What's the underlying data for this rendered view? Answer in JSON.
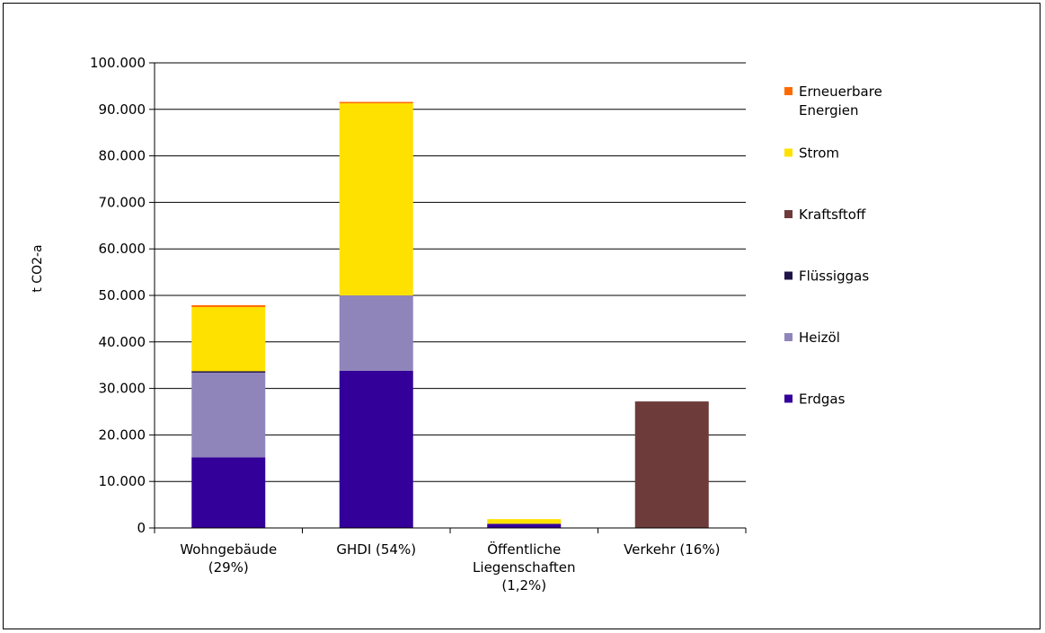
{
  "chart_data": {
    "type": "bar",
    "stacked": true,
    "ylabel": "t CO2-a",
    "ylim": [
      0,
      100000
    ],
    "ytick_step": 10000,
    "ytick_labels": [
      "0",
      "10.000",
      "20.000",
      "30.000",
      "40.000",
      "50.000",
      "60.000",
      "70.000",
      "80.000",
      "90.000",
      "100.000"
    ],
    "grid": true,
    "legend_position": "right",
    "categories": [
      [
        "Wohngebäude",
        "(29%)"
      ],
      [
        "GHDI (54%)"
      ],
      [
        "Öffentliche",
        "Liegenschaften",
        "(1,2%)"
      ],
      [
        "Verkehr (16%)"
      ]
    ],
    "series": [
      {
        "name": "Erdgas",
        "color": "#330099",
        "values": [
          15200,
          33800,
          900,
          0
        ]
      },
      {
        "name": "Heizöl",
        "color": "#9085bb",
        "values": [
          18200,
          16200,
          0,
          0
        ]
      },
      {
        "name": "Flüssiggas",
        "color": "#1f1447",
        "values": [
          300,
          0,
          0,
          0
        ]
      },
      {
        "name": "Kraftsftoff",
        "color": "#6e3b3b",
        "values": [
          0,
          0,
          0,
          27200
        ]
      },
      {
        "name": "Strom",
        "color": "#ffe100",
        "values": [
          13800,
          41300,
          1000,
          0
        ]
      },
      {
        "name": "Erneuerbare Energien",
        "color": "#ff6a00",
        "values": [
          400,
          300,
          0,
          0
        ]
      }
    ],
    "legend_order": [
      "Erneuerbare Energien",
      "Strom",
      "Kraftsftoff",
      "Flüssiggas",
      "Heizöl",
      "Erdgas"
    ],
    "legend_label_lines": {
      "Erneuerbare Energien": [
        "Erneuerbare",
        "Energien"
      ]
    }
  }
}
